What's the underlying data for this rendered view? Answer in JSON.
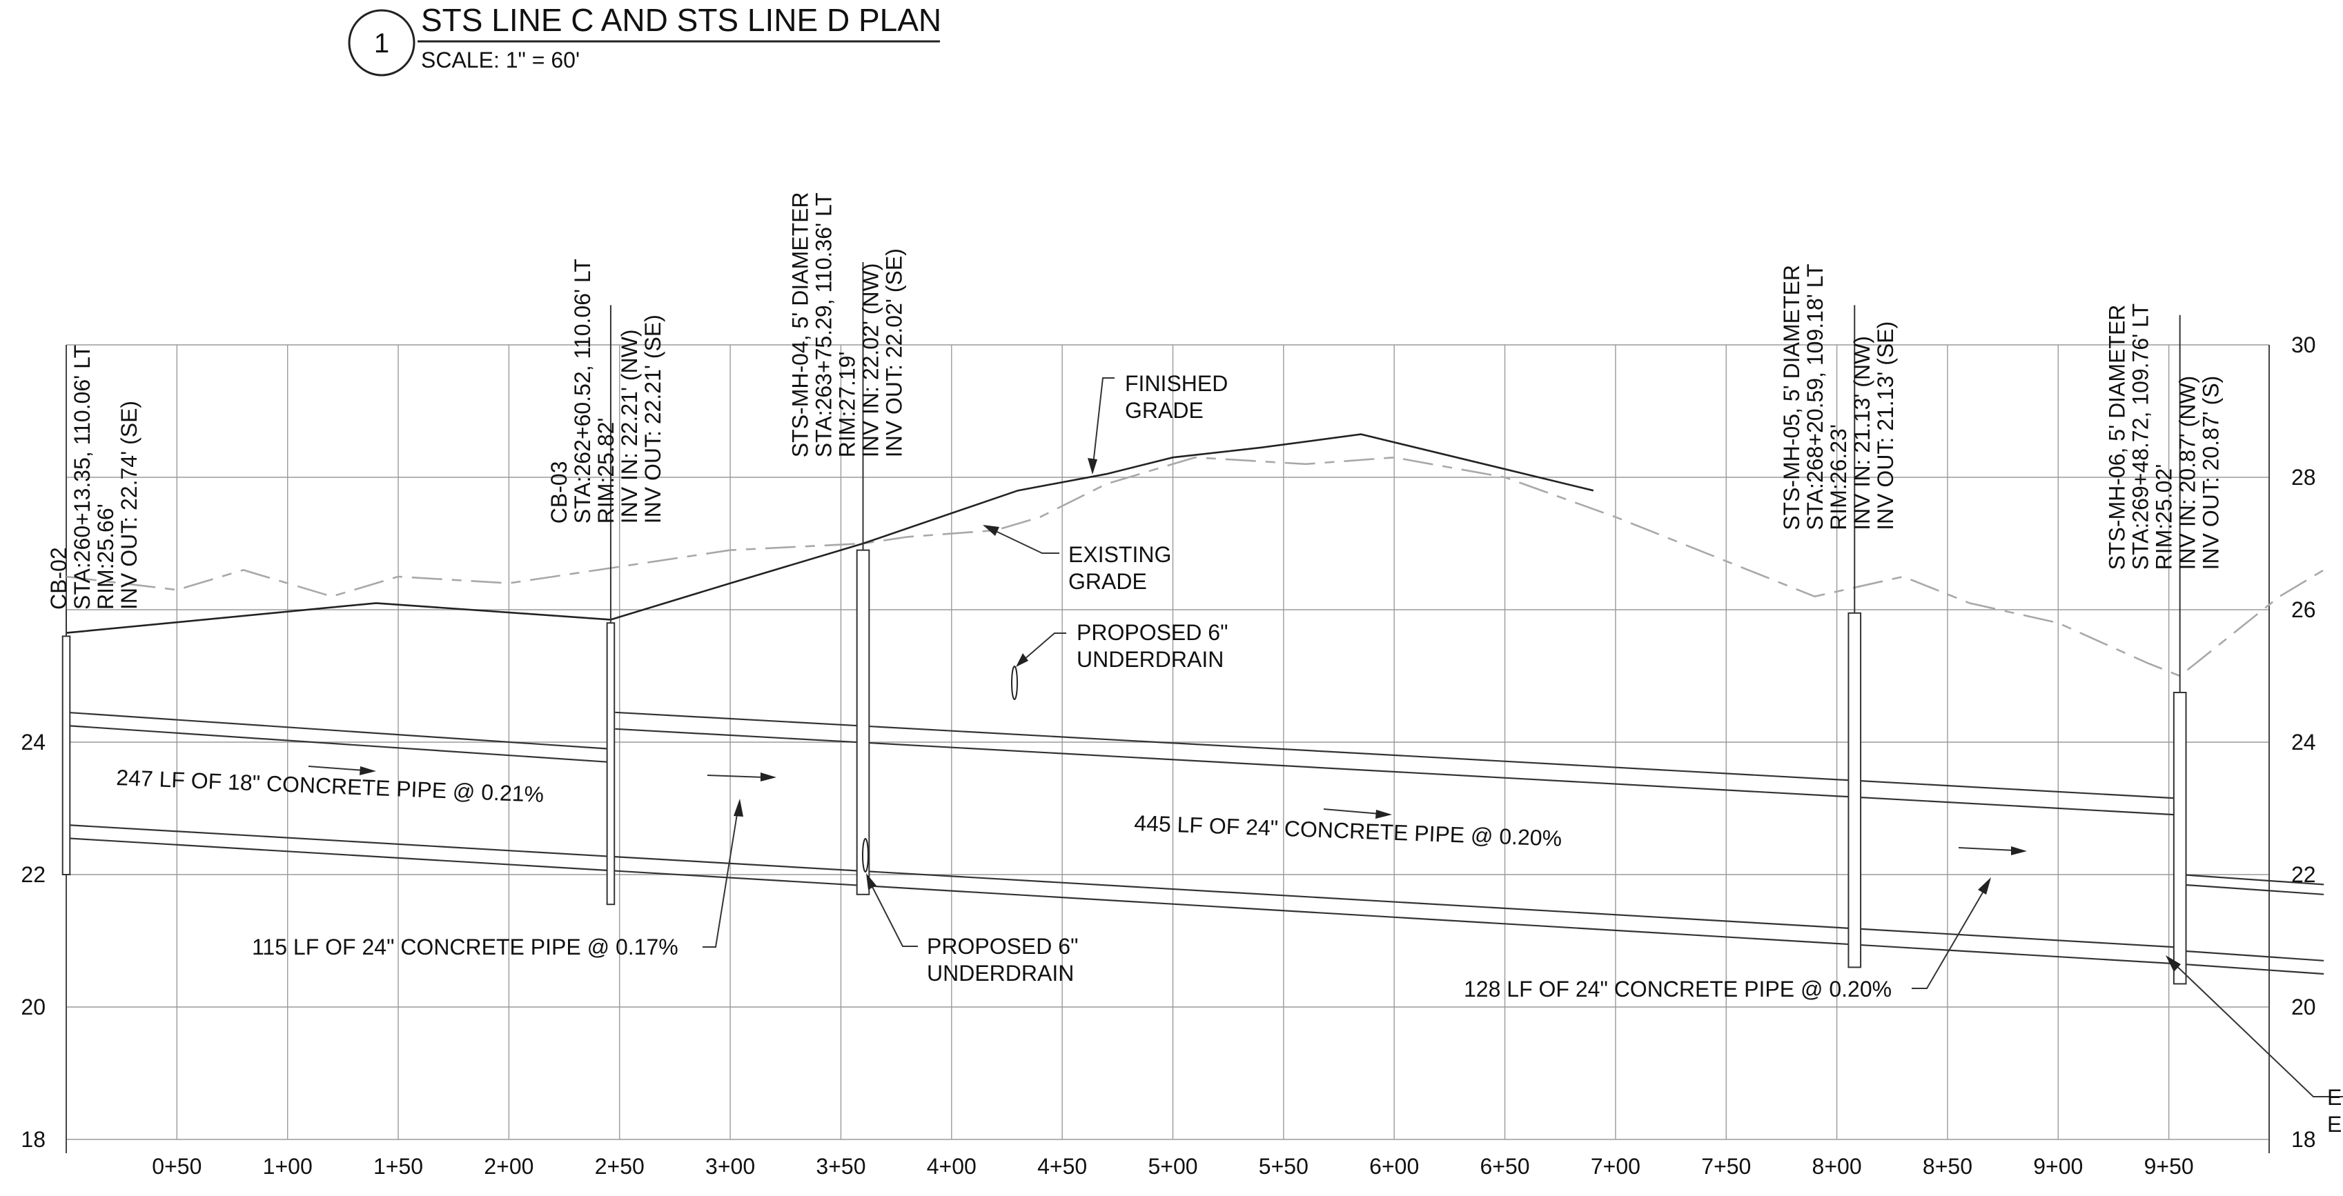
{
  "title": {
    "number": "1",
    "name": "STS LINE C AND STS LINE D PLAN",
    "scale": "SCALE: 1\" = 60'"
  },
  "chart_data": {
    "type": "profile",
    "x_axis": {
      "min": 0,
      "max": 1000,
      "tick_values": [
        50,
        100,
        150,
        200,
        250,
        300,
        350,
        400,
        450,
        500,
        550,
        600,
        650,
        700,
        750,
        800,
        850,
        900,
        950
      ],
      "tick_labels": [
        "0+50",
        "1+00",
        "1+50",
        "2+00",
        "2+50",
        "3+00",
        "3+50",
        "4+00",
        "4+50",
        "5+00",
        "5+50",
        "6+00",
        "6+50",
        "7+00",
        "7+50",
        "8+00",
        "8+50",
        "9+00",
        "9+50"
      ]
    },
    "y_axis": {
      "min": 18,
      "max": 30,
      "left_labels": [
        {
          "value": 18,
          "label": "18"
        },
        {
          "value": 20,
          "label": "20"
        },
        {
          "value": 22,
          "label": "22"
        },
        {
          "value": 24,
          "label": "24"
        }
      ],
      "right_labels": [
        {
          "value": 18,
          "label": "18"
        },
        {
          "value": 20,
          "label": "20"
        },
        {
          "value": 22,
          "label": "22"
        },
        {
          "value": 24,
          "label": "24"
        },
        {
          "value": 26,
          "label": "26"
        },
        {
          "value": 28,
          "label": "28"
        },
        {
          "value": 30,
          "label": "30"
        }
      ]
    },
    "finished_grade": [
      [
        0,
        25.65
      ],
      [
        140,
        26.1
      ],
      [
        246,
        25.85
      ],
      [
        300,
        26.4
      ],
      [
        360,
        27.0
      ],
      [
        430,
        27.8
      ],
      [
        470,
        28.05
      ],
      [
        500,
        28.3
      ],
      [
        540,
        28.45
      ],
      [
        585,
        28.65
      ],
      [
        690,
        27.8
      ]
    ],
    "existing_grade": [
      [
        0,
        26.5
      ],
      [
        50,
        26.3
      ],
      [
        80,
        26.6
      ],
      [
        100,
        26.4
      ],
      [
        120,
        26.2
      ],
      [
        150,
        26.5
      ],
      [
        200,
        26.4
      ],
      [
        300,
        26.9
      ],
      [
        360,
        27.0
      ],
      [
        380,
        27.1
      ],
      [
        400,
        27.15
      ],
      [
        420,
        27.2
      ],
      [
        440,
        27.4
      ],
      [
        470,
        27.9
      ],
      [
        510,
        28.3
      ],
      [
        560,
        28.2
      ],
      [
        600,
        28.3
      ],
      [
        650,
        28.0
      ],
      [
        700,
        27.4
      ],
      [
        760,
        26.6
      ],
      [
        790,
        26.2
      ],
      [
        830,
        26.5
      ],
      [
        860,
        26.1
      ],
      [
        900,
        25.8
      ],
      [
        940,
        25.2
      ],
      [
        955,
        25.0
      ],
      [
        970,
        25.4
      ],
      [
        1000,
        26.2
      ],
      [
        1020,
        26.6
      ]
    ],
    "pipes": [
      {
        "start": [
          0,
          24.45
        ],
        "end": [
          245,
          23.9
        ]
      },
      {
        "start": [
          0,
          24.25
        ],
        "end": [
          245,
          23.7
        ]
      },
      {
        "start": [
          248,
          24.45
        ],
        "end": [
          955,
          23.15
        ]
      },
      {
        "start": [
          248,
          24.2
        ],
        "end": [
          955,
          22.9
        ]
      },
      {
        "start": [
          0,
          22.75
        ],
        "end": [
          955,
          20.9
        ]
      },
      {
        "start": [
          0,
          22.55
        ],
        "end": [
          955,
          20.65
        ]
      },
      {
        "start": [
          955,
          22.0
        ],
        "end": [
          1020,
          21.85
        ]
      },
      {
        "start": [
          955,
          21.85
        ],
        "end": [
          1020,
          21.7
        ]
      },
      {
        "start": [
          955,
          20.85
        ],
        "end": [
          1020,
          20.7
        ]
      },
      {
        "start": [
          955,
          20.65
        ],
        "end": [
          1020,
          20.5
        ]
      }
    ],
    "structures": [
      {
        "id": "cb-02",
        "station": 0,
        "width": 3,
        "top": 25.6,
        "bottom": 22.0,
        "stem_top": 26.0,
        "lines": [
          "CB-02",
          "STA:260+13.35, 110.06' LT",
          "RIM:25.66'",
          "INV OUT: 22.74' (SE)"
        ],
        "label_anchor": [
          0,
          26.0
        ]
      },
      {
        "id": "cb-03",
        "station": 246,
        "width": 3,
        "top": 25.8,
        "bottom": 21.55,
        "stem_top": 30.6,
        "lines": [
          "CB-03",
          "STA:262+60.52, 110.06' LT",
          "RIM:25.82'",
          "INV IN: 22.21' (NW)",
          "INV OUT: 22.21' (SE)"
        ],
        "label_anchor": [
          226,
          27.3
        ]
      },
      {
        "id": "sts-mh-04",
        "station": 360,
        "width": 5,
        "top": 26.9,
        "bottom": 21.7,
        "stem_top": 31.25,
        "lines": [
          "STS-MH-04, 5' DIAMETER",
          "STA:263+75.29, 110.36' LT",
          "RIM:27.19'",
          "INV IN: 22.02' (NW)",
          "INV OUT: 22.02' (SE)"
        ],
        "label_anchor": [
          335,
          28.3
        ]
      },
      {
        "id": "sts-mh-05",
        "station": 808,
        "width": 5,
        "top": 25.95,
        "bottom": 20.6,
        "stem_top": 30.6,
        "lines": [
          "STS-MH-05, 5' DIAMETER",
          "STA:268+20.59, 109.18' LT",
          "RIM:26.23'",
          "INV IN: 21.13' (NW)",
          "INV OUT: 21.13' (SE)"
        ],
        "label_anchor": [
          783,
          27.2
        ]
      },
      {
        "id": "sts-mh-06",
        "station": 955,
        "width": 5,
        "top": 24.75,
        "bottom": 20.35,
        "stem_top": 30.45,
        "lines": [
          "STS-MH-06, 5' DIAMETER",
          "STA:269+48.72, 109.76' LT",
          "RIM:25.02'",
          "INV IN: 20.87' (NW)",
          "INV OUT: 20.87' (S)"
        ],
        "label_anchor": [
          930,
          26.6
        ]
      }
    ],
    "annotations": [
      {
        "id": "finished-grade",
        "lines": [
          "FINISHED",
          "GRADE"
        ]
      },
      {
        "id": "existing-grade",
        "lines": [
          "EXISTING",
          "GRADE"
        ]
      },
      {
        "id": "underdrain-1",
        "lines": [
          "PROPOSED 6\"",
          "UNDERDRAIN"
        ]
      },
      {
        "id": "underdrain-2",
        "lines": [
          "PROPOSED 6\"",
          "UNDERDRAIN"
        ]
      },
      {
        "id": "pipe-247",
        "lines": [
          "247 LF OF 18\" CONCRETE PIPE @ 0.21%"
        ]
      },
      {
        "id": "pipe-115",
        "lines": [
          "115 LF OF 24\" CONCRETE PIPE @ 0.17%"
        ]
      },
      {
        "id": "pipe-445",
        "lines": [
          "445 LF OF 24\" CONCRETE PIPE @ 0.20%"
        ]
      },
      {
        "id": "pipe-128",
        "lines": [
          "128 LF OF 24\" CONCRETE PIPE @ 0.20%"
        ]
      },
      {
        "id": "edge-note",
        "lines": [
          "E",
          "E"
        ]
      }
    ]
  }
}
